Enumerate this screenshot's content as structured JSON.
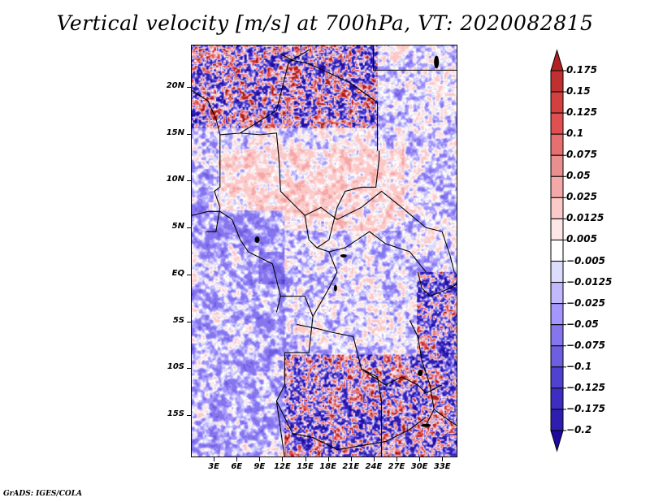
{
  "title": "Vertical velocity [m/s] at 700hPa, VT: 2020082815",
  "footer": "GrADS: IGES/COLA",
  "chart_data": {
    "type": "heatmap",
    "title": "Vertical velocity [m/s] at 700hPa, VT: 2020082815",
    "variable": "Vertical velocity",
    "units": "m/s",
    "level": "700hPa",
    "valid_time": "2020082815",
    "lon_range": [
      0,
      35
    ],
    "lat_range": [
      -19.5,
      24.5
    ],
    "x_ticks": [
      "3E",
      "6E",
      "9E",
      "12E",
      "15E",
      "18E",
      "21E",
      "24E",
      "27E",
      "30E",
      "33E"
    ],
    "x_tick_values": [
      3,
      6,
      9,
      12,
      15,
      18,
      21,
      24,
      27,
      30,
      33
    ],
    "y_ticks": [
      "20N",
      "15N",
      "10N",
      "5N",
      "EQ",
      "5S",
      "10S",
      "15S"
    ],
    "y_tick_values": [
      20,
      15,
      10,
      5,
      0,
      -5,
      -10,
      -15
    ],
    "colorbar": {
      "orientation": "vertical",
      "position": "right",
      "labels": [
        "0.175",
        "0.15",
        "0.125",
        "0.1",
        "0.075",
        "0.05",
        "0.025",
        "0.0125",
        "0.005",
        "−0.005",
        "−0.0125",
        "−0.025",
        "−0.05",
        "−0.075",
        "−0.1",
        "−0.125",
        "−0.175",
        "−0.2"
      ],
      "levels": [
        0.175,
        0.15,
        0.125,
        0.1,
        0.075,
        0.05,
        0.025,
        0.0125,
        0.005,
        -0.005,
        -0.0125,
        -0.025,
        -0.05,
        -0.075,
        -0.1,
        -0.125,
        -0.175,
        -0.2
      ],
      "colors": [
        "#b22222",
        "#c73034",
        "#dc4a4a",
        "#e06a6a",
        "#e08b8b",
        "#f3a3a3",
        "#fbc7c7",
        "#fde4e4",
        "#ffffff",
        "#dcdcff",
        "#c3b9ff",
        "#a596ff",
        "#8474ef",
        "#6b5ee0",
        "#4e3fd0",
        "#3c28c0",
        "#2c1ab0",
        "#1f0aa0"
      ],
      "top_extension_color": "#b22222",
      "bottom_extension_color": "#1f0aa0"
    },
    "grid": false
  }
}
